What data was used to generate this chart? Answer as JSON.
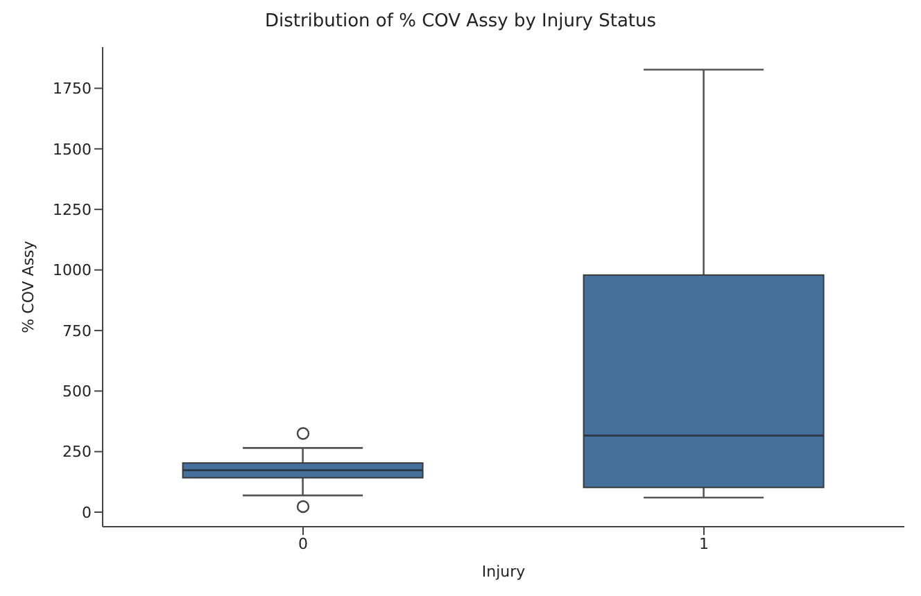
{
  "chart_data": {
    "type": "box",
    "title": "Distribution of % COV Assy by Injury Status",
    "xlabel": "Injury",
    "ylabel": "% COV Assy",
    "categories": [
      "0",
      "1"
    ],
    "color": "#44709b",
    "boxes": [
      {
        "low": 69,
        "q1": 142,
        "median": 173,
        "q3": 203,
        "high": 265,
        "outliers": [
          325,
          23
        ]
      },
      {
        "low": 60,
        "q1": 102,
        "median": 316,
        "q3": 979,
        "high": 1827
      }
    ],
    "ylim": [
      -60,
      1920
    ],
    "yticks": [
      0,
      250,
      500,
      750,
      1000,
      1250,
      1500,
      1750
    ],
    "grid": false,
    "legend": false
  }
}
